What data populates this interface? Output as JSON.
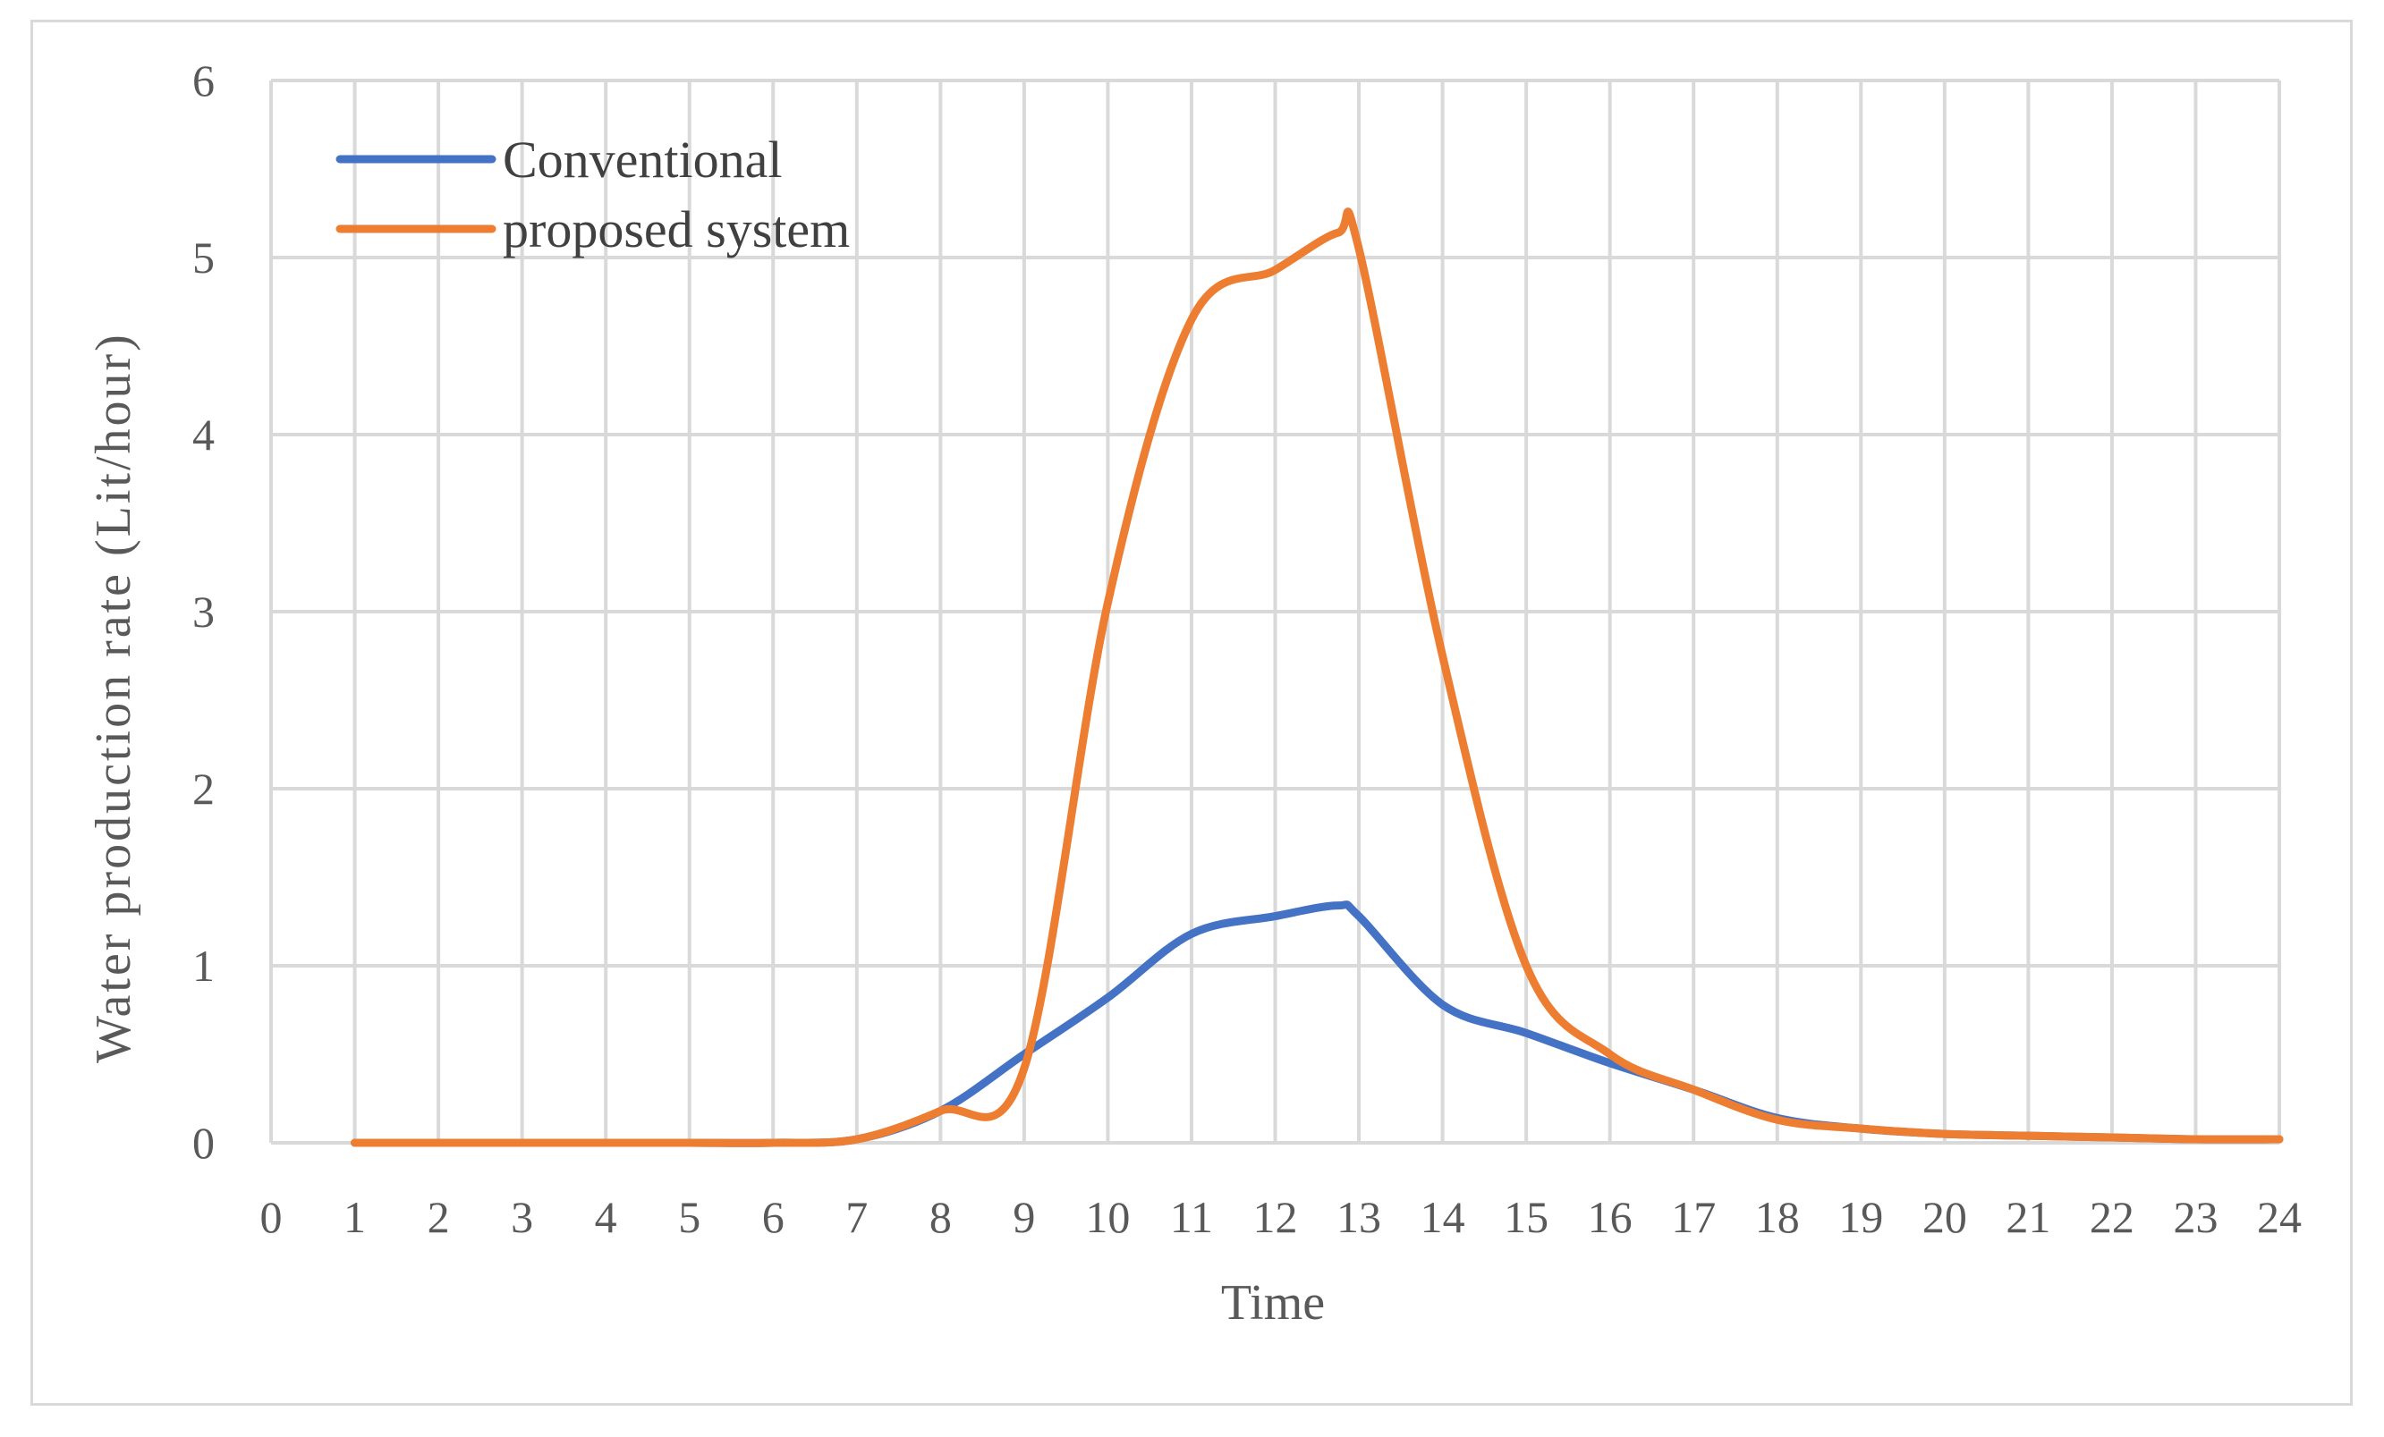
{
  "chart_data": {
    "type": "line",
    "xlabel": "Time",
    "ylabel": "Water production rate (Lit/hour)",
    "xlim": [
      0,
      24
    ],
    "ylim": [
      0,
      6
    ],
    "x_ticks": [
      "0",
      "1",
      "2",
      "3",
      "4",
      "5",
      "6",
      "7",
      "8",
      "9",
      "10",
      "11",
      "12",
      "13",
      "14",
      "15",
      "16",
      "17",
      "18",
      "19",
      "20",
      "21",
      "22",
      "23",
      "24"
    ],
    "y_ticks": [
      "0",
      "1",
      "2",
      "3",
      "4",
      "5",
      "6"
    ],
    "grid": true,
    "legend_position": "top-left",
    "series": [
      {
        "name": "Conventional",
        "color": "#4472c4",
        "x": [
          1,
          2,
          3,
          4,
          5,
          6,
          7,
          8,
          9,
          10,
          11,
          12,
          12.75,
          13,
          14,
          15,
          16,
          17,
          18,
          19,
          20,
          21,
          22,
          23,
          24
        ],
        "values": [
          0,
          0,
          0,
          0,
          0,
          0,
          0.02,
          0.18,
          0.5,
          0.82,
          1.18,
          1.28,
          1.34,
          1.28,
          0.78,
          0.62,
          0.45,
          0.3,
          0.14,
          0.08,
          0.05,
          0.04,
          0.03,
          0.02,
          0.02
        ]
      },
      {
        "name": "proposed system",
        "color": "#ed7d31",
        "x": [
          1,
          2,
          3,
          4,
          5,
          6,
          7,
          8,
          9,
          10,
          11,
          12,
          12.75,
          13,
          14,
          15,
          16,
          17,
          18,
          19,
          20,
          21,
          22,
          23,
          24
        ],
        "values": [
          0,
          0,
          0,
          0,
          0,
          0,
          0.02,
          0.18,
          0.42,
          3.05,
          4.65,
          4.93,
          5.14,
          5.05,
          2.75,
          1.0,
          0.5,
          0.3,
          0.13,
          0.08,
          0.05,
          0.04,
          0.03,
          0.02,
          0.02
        ]
      }
    ]
  }
}
